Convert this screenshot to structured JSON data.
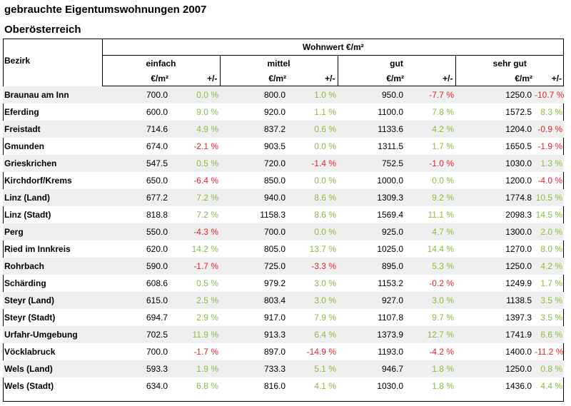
{
  "header": {
    "title": "gebrauchte Eigentumswohnungen 2007",
    "subtitle": "Oberösterreich"
  },
  "table": {
    "super_header": "Wohnwert €/m²",
    "row_header": "Bezirk",
    "groups": [
      "einfach",
      "mittel",
      "gut",
      "sehr gut"
    ],
    "unit_label": "€/m²",
    "change_label": "+/-",
    "pct_sign": "%",
    "rows": [
      {
        "name": "Braunau am Inn",
        "v": [
          "700.0",
          "800.0",
          "950.0",
          "1250.0"
        ],
        "c": [
          "0.0",
          "1.0",
          "-7.7",
          "-10.7"
        ]
      },
      {
        "name": "Eferding",
        "v": [
          "600.0",
          "920.0",
          "1100.0",
          "1572.5"
        ],
        "c": [
          "9.0",
          "1.1",
          "7.8",
          "8.3"
        ]
      },
      {
        "name": "Freistadt",
        "v": [
          "714.6",
          "837.2",
          "1133.6",
          "1204.0"
        ],
        "c": [
          "4.9",
          "0.6",
          "4.2",
          "-0.9"
        ]
      },
      {
        "name": "Gmunden",
        "v": [
          "674.0",
          "903.5",
          "1311.5",
          "1650.5"
        ],
        "c": [
          "-2.1",
          "0.0",
          "1.7",
          "-1.9"
        ]
      },
      {
        "name": "Grieskrichen",
        "v": [
          "547.5",
          "720.0",
          "752.5",
          "1030.0"
        ],
        "c": [
          "0.5",
          "-1.4",
          "-1.0",
          "1.3"
        ]
      },
      {
        "name": "Kirchdorf/Krems",
        "v": [
          "650.0",
          "850.0",
          "1000.0",
          "1200.0"
        ],
        "c": [
          "-6.4",
          "0.0",
          "0.0",
          "-4.0"
        ]
      },
      {
        "name": "Linz (Land)",
        "v": [
          "677.2",
          "940.0",
          "1309.3",
          "1774.8"
        ],
        "c": [
          "7.2",
          "8.6",
          "9.2",
          "10.5"
        ]
      },
      {
        "name": "Linz (Stadt)",
        "v": [
          "818.8",
          "1158.3",
          "1569.4",
          "2098.3"
        ],
        "c": [
          "7.2",
          "8.6",
          "11.1",
          "14.5"
        ]
      },
      {
        "name": "Perg",
        "v": [
          "550.0",
          "700.0",
          "925.0",
          "1300.0"
        ],
        "c": [
          "-4.3",
          "0.0",
          "4.7",
          "2.0"
        ]
      },
      {
        "name": "Ried im Innkreis",
        "v": [
          "620.0",
          "805.0",
          "1025.0",
          "1270.0"
        ],
        "c": [
          "14.2",
          "13.7",
          "14.4",
          "8.0"
        ]
      },
      {
        "name": "Rohrbach",
        "v": [
          "590.0",
          "725.0",
          "895.0",
          "1250.0"
        ],
        "c": [
          "-1.7",
          "-3.3",
          "5.3",
          "4.2"
        ]
      },
      {
        "name": "Schärding",
        "v": [
          "608.6",
          "979.2",
          "1153.2",
          "1249.9"
        ],
        "c": [
          "0.5",
          "3.0",
          "-0.2",
          "1.7"
        ]
      },
      {
        "name": "Steyr (Land)",
        "v": [
          "615.0",
          "803.4",
          "927.0",
          "1138.5"
        ],
        "c": [
          "2.5",
          "3.0",
          "3.0",
          "3.5"
        ]
      },
      {
        "name": "Steyr (Stadt)",
        "v": [
          "694.7",
          "917.0",
          "1107.8",
          "1397.3"
        ],
        "c": [
          "2.9",
          "7.9",
          "9.7",
          "3.5"
        ]
      },
      {
        "name": "Urfahr-Umgebung",
        "v": [
          "702.5",
          "913.3",
          "1373.9",
          "1741.9"
        ],
        "c": [
          "11.9",
          "6.4",
          "12.7",
          "6.6"
        ]
      },
      {
        "name": "Vöcklabruck",
        "v": [
          "700.0",
          "897.0",
          "1193.0",
          "1400.0"
        ],
        "c": [
          "-1.7",
          "-14.9",
          "-4.2",
          "-11.2"
        ]
      },
      {
        "name": "Wels (Land)",
        "v": [
          "593.3",
          "733.3",
          "946.7",
          "1250.0"
        ],
        "c": [
          "1.9",
          "5.1",
          "1.8",
          "0.8"
        ]
      },
      {
        "name": "Wels (Stadt)",
        "v": [
          "634.0",
          "816.0",
          "1030.0",
          "1436.0"
        ],
        "c": [
          "6.8",
          "4.1",
          "1.8",
          "4.4"
        ]
      }
    ]
  },
  "colors": {
    "positive": "#8cbd3c",
    "negative": "#e8232a",
    "alt_row": "#efefef"
  }
}
